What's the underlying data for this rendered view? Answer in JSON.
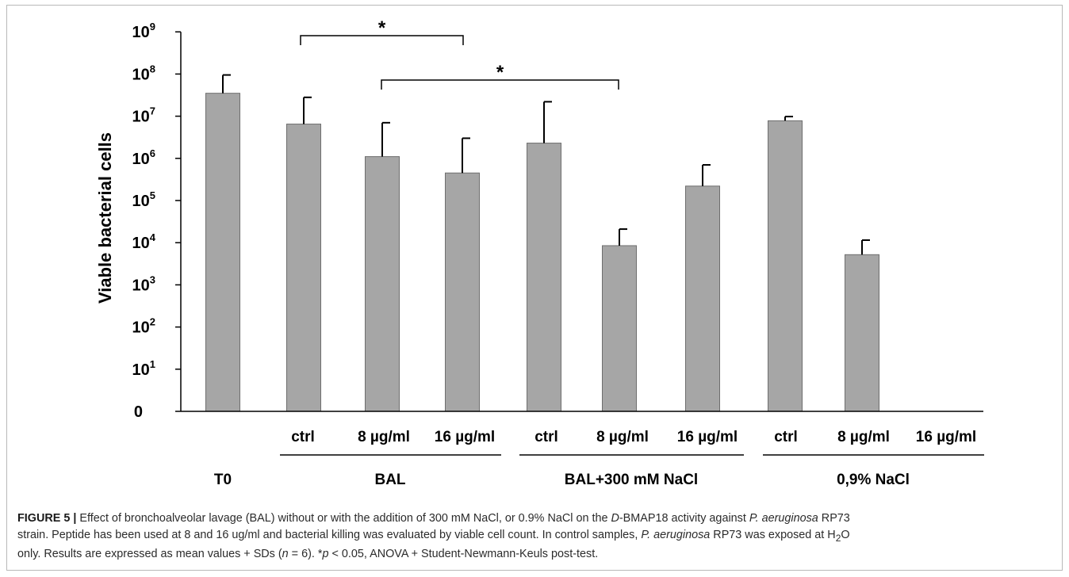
{
  "chart_data": {
    "type": "bar",
    "yscale": "log",
    "ylabel": "Viable bacterial cells",
    "ytick_labels": [
      {
        "base": "0",
        "exp": ""
      },
      {
        "base": "10",
        "exp": "1"
      },
      {
        "base": "10",
        "exp": "2"
      },
      {
        "base": "10",
        "exp": "3"
      },
      {
        "base": "10",
        "exp": "4"
      },
      {
        "base": "10",
        "exp": "5"
      },
      {
        "base": "10",
        "exp": "6"
      },
      {
        "base": "10",
        "exp": "7"
      },
      {
        "base": "10",
        "exp": "8"
      },
      {
        "base": "10",
        "exp": "9"
      }
    ],
    "ylim": [
      1,
      1000000000
    ],
    "categories": [
      "",
      "ctrl",
      "8 µg/ml",
      "16 µg/ml",
      "ctrl",
      "8 µg/ml",
      "16 µg/ml",
      "ctrl",
      "8 µg/ml",
      "16 µg/ml"
    ],
    "values": [
      35000000,
      6500000,
      1100000,
      450000,
      2300000,
      8500,
      220000,
      7800000,
      5200,
      null
    ],
    "error_upper": [
      95000000,
      28000000,
      7000000,
      3000000,
      22000000,
      21000,
      700000,
      9800000,
      11500,
      null
    ],
    "groups": [
      {
        "label": "T0",
        "members": [
          0
        ]
      },
      {
        "label": "BAL",
        "members": [
          1,
          2,
          3
        ]
      },
      {
        "label": "BAL+300 mM NaCl",
        "members": [
          4,
          5,
          6
        ]
      },
      {
        "label": "0,9% NaCl",
        "members": [
          7,
          8,
          9
        ]
      }
    ],
    "annotations": [
      {
        "text": "*",
        "from": 1,
        "to": 3
      },
      {
        "text": "*",
        "from": 2,
        "to": 5
      }
    ],
    "colors": {
      "bar": "#a6a6a6",
      "bar_edge": "#6e6e6e",
      "axis": "#000000"
    }
  },
  "caption": {
    "label": "FIGURE 5 |",
    "lines": [
      [
        {
          "t": " Effect of bronchoalveolar lavage (BAL) without or with the addition of 300 mM NaCl, or 0.9% NaCl on the "
        },
        {
          "t": "D",
          "i": true
        },
        {
          "t": "-BMAP18 activity against "
        },
        {
          "t": "P. aeruginosa",
          "i": true
        },
        {
          "t": " RP73"
        }
      ],
      [
        {
          "t": "strain. Peptide has been used at 8 and 16 ug/ml and bacterial killing was evaluated by viable cell count. In control samples, "
        },
        {
          "t": "P. aeruginosa",
          "i": true
        },
        {
          "t": " RP73 was exposed at H"
        },
        {
          "t": "2",
          "sub": true
        },
        {
          "t": "O"
        }
      ],
      [
        {
          "t": "only. Results are expressed as mean values + SDs ("
        },
        {
          "t": "n",
          "i": true
        },
        {
          "t": " = 6). *"
        },
        {
          "t": "p",
          "i": true
        },
        {
          "t": " < 0.05, ANOVA + Student-Newmann-Keuls post-test."
        }
      ]
    ]
  }
}
